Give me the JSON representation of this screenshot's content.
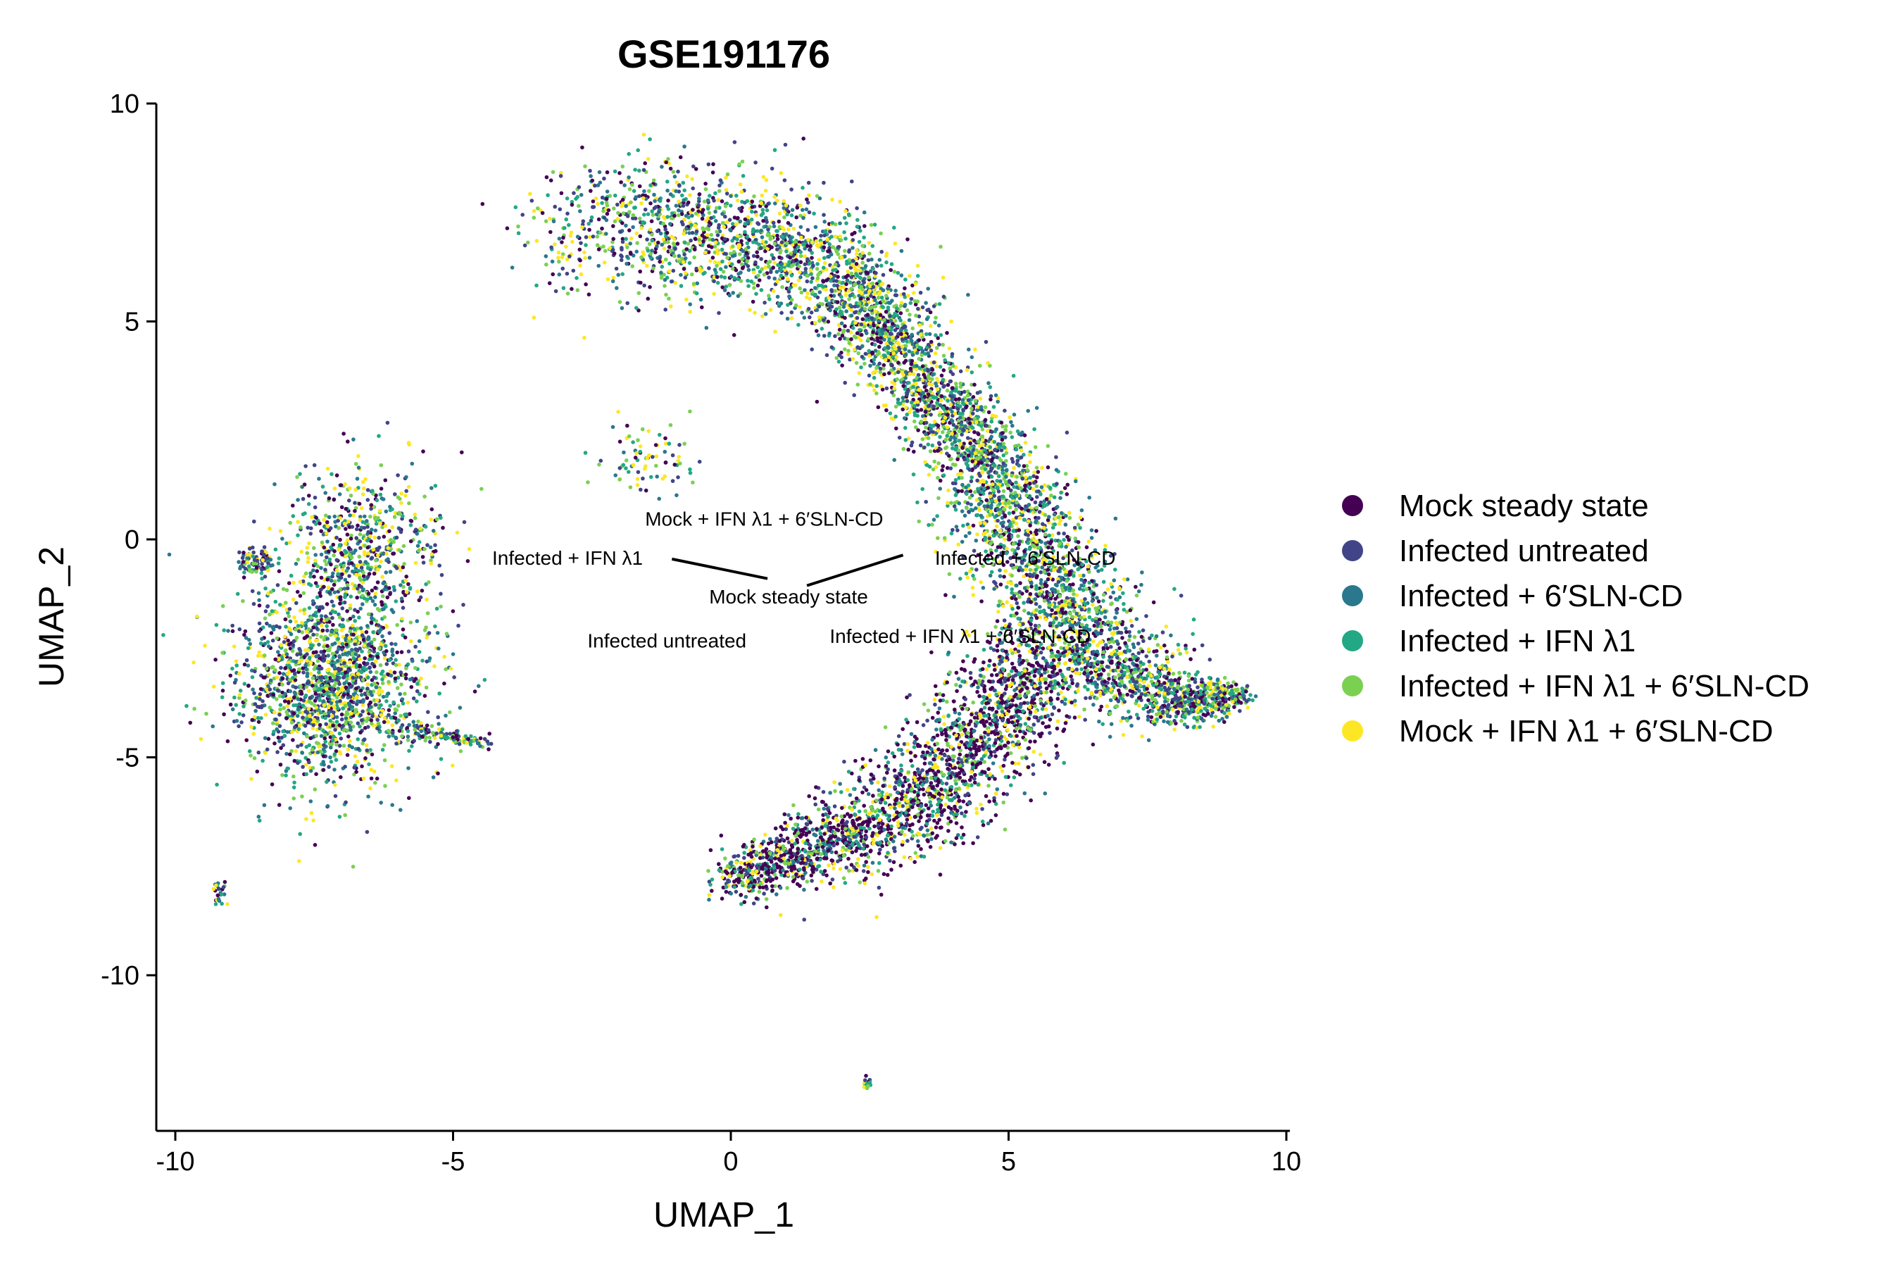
{
  "chart_data": {
    "type": "scatter",
    "title": "GSE191176",
    "xlabel": "UMAP_1",
    "ylabel": "UMAP_2",
    "xlim": [
      -10.3,
      10.3
    ],
    "ylim": [
      -13.2,
      10
    ],
    "xticks": [
      -10,
      -5,
      0,
      5,
      10
    ],
    "yticks": [
      10,
      5,
      0,
      -5,
      -10
    ],
    "xtick_labels": [
      "-10",
      "-5",
      "0",
      "5",
      "10"
    ],
    "ytick_labels": [
      "10",
      "5",
      "0",
      "-5",
      "-10"
    ],
    "grid": false,
    "legend_position": "right",
    "legend": [
      {
        "name": "Mock steady state",
        "color": "#440154"
      },
      {
        "name": "Infected untreated",
        "color": "#414487"
      },
      {
        "name": "Infected + 6′SLN-CD",
        "color": "#2A788E"
      },
      {
        "name": "Infected + IFN λ1",
        "color": "#22A884"
      },
      {
        "name": "Infected + IFN λ1 + 6′SLN-CD",
        "color": "#7AD151"
      },
      {
        "name": "Mock + IFN λ1 + 6′SLN-CD",
        "color": "#FDE725"
      }
    ],
    "annotations": [
      {
        "text": "Mock + IFN λ1 + 6′SLN-CD",
        "x": 0.6,
        "y": 0.48
      },
      {
        "text": "Infected + IFN λ1",
        "x": -2.94,
        "y": -0.42
      },
      {
        "text": "Infected + 6′SLN-CD",
        "x": 5.3,
        "y": -0.42
      },
      {
        "text": "Mock steady state",
        "x": 1.04,
        "y": -1.31
      },
      {
        "text": "Infected untreated",
        "x": -1.15,
        "y": -2.32
      },
      {
        "text": "Infected + IFN λ1 + 6′SLN-CD",
        "x": 4.13,
        "y": -2.21
      }
    ],
    "label_segments": [
      {
        "x1": -1.06,
        "y1": -0.45,
        "x2": 0.66,
        "y2": -0.9
      },
      {
        "x1": 1.37,
        "y1": -1.06,
        "x2": 3.1,
        "y2": -0.36
      }
    ],
    "clusters": [
      {
        "kind": "path",
        "n": 5200,
        "points": [
          [
            -2.6,
            7.0
          ],
          [
            -1.0,
            7.2
          ],
          [
            0.8,
            6.8
          ],
          [
            2.2,
            5.8
          ],
          [
            3.3,
            3.8
          ],
          [
            4.4,
            2.2
          ],
          [
            5.4,
            -0.3
          ],
          [
            6.4,
            -2.5
          ],
          [
            7.8,
            -3.7
          ],
          [
            9.2,
            -3.6
          ]
        ],
        "widths": [
          1.1,
          1.0,
          0.9,
          0.7,
          0.6,
          0.6,
          0.8,
          0.9,
          0.5,
          0.15
        ]
      },
      {
        "kind": "path",
        "n": 2300,
        "points": [
          [
            5.6,
            -2.6
          ],
          [
            4.6,
            -4.6
          ],
          [
            3.2,
            -6.2
          ],
          [
            1.6,
            -7.1
          ],
          [
            0.0,
            -7.8
          ]
        ],
        "widths": [
          0.7,
          0.8,
          0.8,
          0.6,
          0.3
        ],
        "bias": "#440154"
      },
      {
        "kind": "blob",
        "n": 1700,
        "cx": -7.2,
        "cy": -3.3,
        "sx": 0.85,
        "sy": 1.1
      },
      {
        "kind": "blob",
        "n": 600,
        "cx": -6.6,
        "cy": -0.2,
        "sx": 0.65,
        "sy": 0.9
      },
      {
        "kind": "path",
        "n": 90,
        "points": [
          [
            -8.5,
            -0.4
          ],
          [
            -8.6,
            -0.6
          ]
        ],
        "widths": [
          0.2,
          0.2
        ],
        "bias": "#414487"
      },
      {
        "kind": "path",
        "n": 120,
        "points": [
          [
            -5.8,
            -4.3
          ],
          [
            -4.4,
            -4.7
          ]
        ],
        "widths": [
          0.15,
          0.1
        ]
      },
      {
        "kind": "blob",
        "n": 80,
        "cx": -1.5,
        "cy": 1.8,
        "sx": 0.5,
        "sy": 0.4
      },
      {
        "kind": "blob",
        "n": 25,
        "cx": -9.2,
        "cy": -8.1,
        "sx": 0.08,
        "sy": 0.15
      },
      {
        "kind": "blob",
        "n": 20,
        "cx": 2.45,
        "cy": -12.5,
        "sx": 0.04,
        "sy": 0.08
      }
    ]
  }
}
